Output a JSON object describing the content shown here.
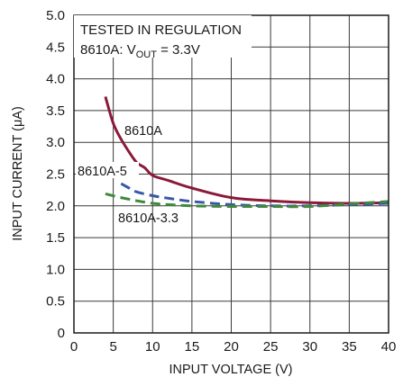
{
  "chart_data": {
    "type": "line",
    "xlabel": "INPUT VOLTAGE (V)",
    "ylabel": "INPUT CURRENT (μA)",
    "xlim": [
      0,
      40
    ],
    "ylim": [
      0,
      5.0
    ],
    "x_ticks": [
      "0",
      "5",
      "10",
      "15",
      "20",
      "25",
      "30",
      "35",
      "40"
    ],
    "y_ticks": [
      "0",
      "0.5",
      "1.0",
      "1.5",
      "2.0",
      "2.5",
      "3.0",
      "3.5",
      "4.0",
      "4.5",
      "5.0"
    ],
    "grid": true,
    "annotation": {
      "line1": "TESTED IN REGULATION",
      "line2_prefix": "8610A: V",
      "line2_sub": "OUT",
      "line2_suffix": " = 3.3V"
    },
    "series": [
      {
        "name": "8610A",
        "color": "#8b1a3a",
        "style": "solid",
        "x": [
          4,
          5,
          6,
          7,
          8,
          9,
          10,
          12,
          15,
          20,
          25,
          30,
          35,
          40
        ],
        "y": [
          3.72,
          3.3,
          3.05,
          2.85,
          2.68,
          2.6,
          2.48,
          2.4,
          2.28,
          2.13,
          2.08,
          2.05,
          2.04,
          2.05
        ]
      },
      {
        "name": "8610A-5",
        "color": "#3a58a6",
        "style": "dashed",
        "x": [
          6,
          7,
          8,
          10,
          12,
          15,
          20,
          25,
          30,
          35,
          40
        ],
        "y": [
          2.35,
          2.28,
          2.22,
          2.16,
          2.12,
          2.07,
          2.02,
          2.0,
          2.0,
          2.02,
          2.04
        ]
      },
      {
        "name": "8610A-3.3",
        "color": "#3f8a3a",
        "style": "dashed",
        "x": [
          4,
          6,
          8,
          10,
          12,
          15,
          20,
          25,
          30,
          35,
          40
        ],
        "y": [
          2.19,
          2.13,
          2.08,
          2.04,
          2.02,
          2.0,
          1.99,
          1.99,
          1.99,
          2.03,
          2.07
        ]
      }
    ]
  }
}
